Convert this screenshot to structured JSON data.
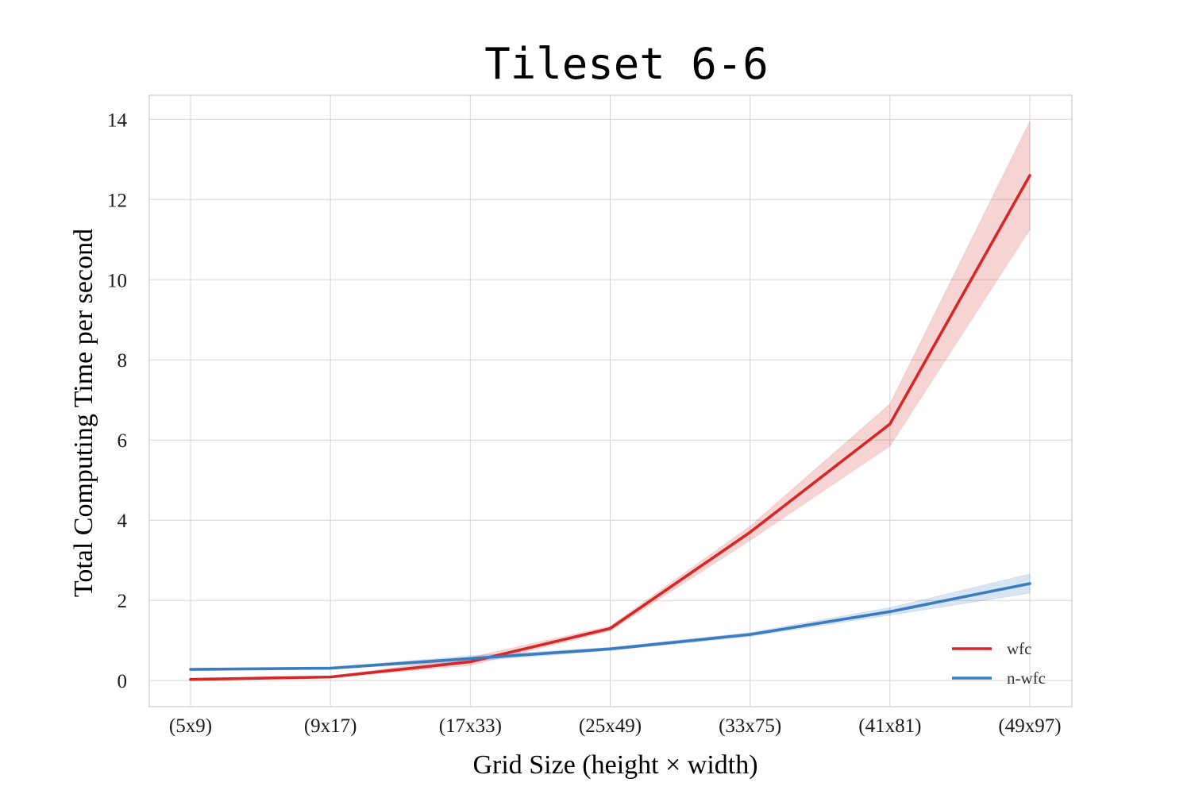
{
  "chart_data": {
    "type": "line",
    "title": "Tileset 6-6",
    "xlabel": "Grid Size (height × width)",
    "ylabel": "Total Computing Time per second",
    "categories": [
      "(5x9)",
      "(9x17)",
      "(17x33)",
      "(25x49)",
      "(33x75)",
      "(41x81)",
      "(49x97)"
    ],
    "ylim": [
      -0.65,
      14.6
    ],
    "yticks": [
      0,
      2,
      4,
      6,
      8,
      10,
      12,
      14
    ],
    "grid": true,
    "legend_position": "bottom-right",
    "series": [
      {
        "name": "wfc",
        "color": "#d62728",
        "values": [
          0.03,
          0.09,
          0.47,
          1.3,
          3.7,
          6.4,
          12.6
        ],
        "lower": [
          0.02,
          0.07,
          0.38,
          1.24,
          3.5,
          5.85,
          11.25
        ],
        "upper": [
          0.04,
          0.11,
          0.58,
          1.36,
          3.85,
          6.9,
          13.95
        ]
      },
      {
        "name": "n-wfc",
        "color": "#3a7cbf",
        "values": [
          0.28,
          0.31,
          0.55,
          0.79,
          1.15,
          1.72,
          2.42
        ],
        "lower": [
          0.26,
          0.29,
          0.48,
          0.75,
          1.1,
          1.63,
          2.18
        ],
        "upper": [
          0.3,
          0.33,
          0.62,
          0.83,
          1.2,
          1.82,
          2.66
        ]
      }
    ]
  }
}
